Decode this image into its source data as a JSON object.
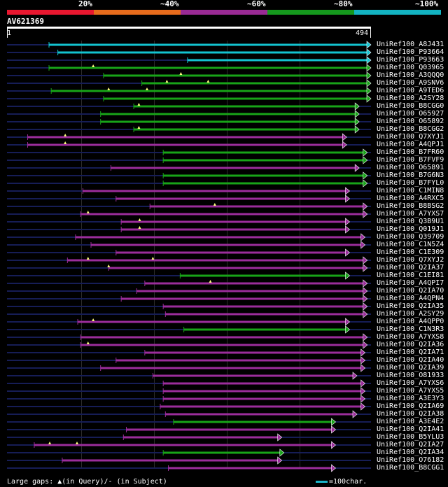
{
  "header": {
    "identity_scale": [
      {
        "label": "20%",
        "color": "#e8172f"
      },
      {
        "label": "~40%",
        "color": "#e66b1c"
      },
      {
        "label": "~60%",
        "color": "#992a94"
      },
      {
        "label": "~80%",
        "color": "#15981d"
      },
      {
        "label": "~100%",
        "color": "#13b3c2"
      }
    ],
    "query_id": "AV621369",
    "query_start": "1",
    "query_end": "494"
  },
  "colors": {
    "teal": "#13c3d0",
    "green": "#18a418",
    "purple": "#9b2d9b",
    "navy": "#161d56",
    "marker": "#ffff80"
  },
  "query_length": 494,
  "hits": [
    {
      "name": "UniRef100_A8J431",
      "color": "teal",
      "qs": 57,
      "qe": 494,
      "gaps": [],
      "markers": []
    },
    {
      "name": "UniRef100_P93664",
      "color": "teal",
      "qs": 69,
      "qe": 494,
      "gaps": [
        [
          82,
          106
        ]
      ],
      "markers": []
    },
    {
      "name": "UniRef100_P93663",
      "color": "teal",
      "qs": 245,
      "qe": 494,
      "gaps": [],
      "markers": []
    },
    {
      "name": "UniRef100_Q03965",
      "color": "green",
      "qs": 57,
      "qe": 494,
      "gaps": [],
      "markers": [
        117
      ]
    },
    {
      "name": "UniRef100_A3QQQ0",
      "color": "green",
      "qs": 131,
      "qe": 494,
      "gaps": [],
      "markers": [
        236
      ]
    },
    {
      "name": "UniRef100_A9SNV6",
      "color": "green",
      "qs": 183,
      "qe": 494,
      "gaps": [],
      "markers": [
        217,
        273
      ]
    },
    {
      "name": "UniRef100_A9TED6",
      "color": "green",
      "qs": 60,
      "qe": 494,
      "gaps": [],
      "markers": [
        138,
        190
      ]
    },
    {
      "name": "UniRef100_A2SY28",
      "color": "green",
      "qs": 131,
      "qe": 494,
      "gaps": [
        [
          160,
          180
        ],
        [
          218,
          232
        ]
      ],
      "markers": []
    },
    {
      "name": "UniRef100_B8CGG0",
      "color": "green",
      "qs": 172,
      "qe": 478,
      "gaps": [
        [
          258,
          272
        ],
        [
          362,
          376
        ]
      ],
      "markers": [
        179
      ]
    },
    {
      "name": "UniRef100_O65927",
      "color": "green",
      "qs": 127,
      "qe": 478,
      "gaps": [
        [
          240,
          254
        ]
      ],
      "markers": []
    },
    {
      "name": "UniRef100_O65892",
      "color": "green",
      "qs": 127,
      "qe": 478,
      "gaps": [
        [
          240,
          254
        ]
      ],
      "markers": []
    },
    {
      "name": "UniRef100_B8CGG2",
      "color": "green",
      "qs": 172,
      "qe": 478,
      "gaps": [
        [
          258,
          272
        ]
      ],
      "markers": [
        179
      ]
    },
    {
      "name": "UniRef100_Q7XYJ1",
      "color": "purple",
      "qs": 28,
      "qe": 461,
      "gaps": [
        [
          55,
          68
        ],
        [
          100,
          115
        ],
        [
          200,
          213
        ]
      ],
      "markers": [
        79
      ]
    },
    {
      "name": "UniRef100_A4QPJ1",
      "color": "purple",
      "qs": 28,
      "qe": 461,
      "gaps": [
        [
          55,
          68
        ],
        [
          100,
          115
        ]
      ],
      "markers": [
        79
      ]
    },
    {
      "name": "UniRef100_B7FR60",
      "color": "green",
      "qs": 212,
      "qe": 489,
      "gaps": [
        [
          272,
          286
        ]
      ],
      "markers": []
    },
    {
      "name": "UniRef100_B7FVF9",
      "color": "green",
      "qs": 212,
      "qe": 489,
      "gaps": [
        [
          272,
          286
        ]
      ],
      "markers": []
    },
    {
      "name": "UniRef100_O65891",
      "color": "purple",
      "qs": 141,
      "qe": 478,
      "gaps": [
        [
          180,
          200
        ],
        [
          300,
          320
        ]
      ],
      "markers": []
    },
    {
      "name": "UniRef100_B7G6N3",
      "color": "green",
      "qs": 212,
      "qe": 489,
      "gaps": [
        [
          272,
          286
        ]
      ],
      "markers": []
    },
    {
      "name": "UniRef100_B7FYL0",
      "color": "green",
      "qs": 212,
      "qe": 489,
      "gaps": [
        [
          272,
          286
        ]
      ],
      "markers": []
    },
    {
      "name": "UniRef100_C1MIN8",
      "color": "purple",
      "qs": 103,
      "qe": 465,
      "gaps": [
        [
          180,
          200
        ],
        [
          310,
          325
        ]
      ],
      "markers": []
    },
    {
      "name": "UniRef100_A4RXC5",
      "color": "purple",
      "qs": 148,
      "qe": 465,
      "gaps": [
        [
          220,
          240
        ]
      ],
      "markers": []
    },
    {
      "name": "UniRef100_B8BSG2",
      "color": "purple",
      "qs": 194,
      "qe": 489,
      "gaps": [],
      "markers": [
        282
      ]
    },
    {
      "name": "UniRef100_A7YXS7",
      "color": "purple",
      "qs": 100,
      "qe": 489,
      "gaps": [
        [
          125,
          145
        ],
        [
          300,
          320
        ]
      ],
      "markers": [
        110
      ]
    },
    {
      "name": "UniRef100_Q3B9U1",
      "color": "purple",
      "qs": 155,
      "qe": 465,
      "gaps": [
        [
          190,
          210
        ],
        [
          290,
          305
        ]
      ],
      "markers": [
        180
      ]
    },
    {
      "name": "UniRef100_Q019J1",
      "color": "purple",
      "qs": 155,
      "qe": 465,
      "gaps": [
        [
          190,
          210
        ],
        [
          290,
          305
        ]
      ],
      "markers": [
        180
      ]
    },
    {
      "name": "UniRef100_Q39709",
      "color": "purple",
      "qs": 93,
      "qe": 486,
      "gaps": [
        [
          100,
          125
        ],
        [
          300,
          320
        ]
      ],
      "markers": []
    },
    {
      "name": "UniRef100_C1N5Z4",
      "color": "purple",
      "qs": 114,
      "qe": 486,
      "gaps": [
        [
          200,
          220
        ]
      ],
      "markers": []
    },
    {
      "name": "UniRef100_C1E309",
      "color": "purple",
      "qs": 148,
      "qe": 465,
      "gaps": [
        [
          180,
          200
        ]
      ],
      "markers": []
    },
    {
      "name": "UniRef100_Q7XYJ2",
      "color": "purple",
      "qs": 82,
      "qe": 489,
      "gaps": [
        [
          90,
          105
        ],
        [
          260,
          275
        ]
      ],
      "markers": [
        110,
        198
      ]
    },
    {
      "name": "UniRef100_Q2IA37",
      "color": "purple",
      "qs": 138,
      "qe": 489,
      "gaps": [
        [
          160,
          180
        ],
        [
          300,
          315
        ]
      ],
      "markers": [
        138
      ]
    },
    {
      "name": "UniRef100_C1EI81",
      "color": "green",
      "qs": 235,
      "qe": 465,
      "gaps": [
        [
          300,
          315
        ]
      ],
      "markers": []
    },
    {
      "name": "UniRef100_A4QPI7",
      "color": "purple",
      "qs": 187,
      "qe": 489,
      "gaps": [
        [
          200,
          215
        ]
      ],
      "markers": [
        276
      ]
    },
    {
      "name": "UniRef100_Q2IA70",
      "color": "purple",
      "qs": 176,
      "qe": 489,
      "gaps": [
        [
          230,
          245
        ]
      ],
      "markers": []
    },
    {
      "name": "UniRef100_A4QPN4",
      "color": "purple",
      "qs": 155,
      "qe": 489,
      "gaps": [],
      "markers": []
    },
    {
      "name": "UniRef100_Q2IA35",
      "color": "purple",
      "qs": 212,
      "qe": 489,
      "gaps": [
        [
          272,
          286
        ]
      ],
      "markers": []
    },
    {
      "name": "UniRef100_A2SY29",
      "color": "purple",
      "qs": 215,
      "qe": 489,
      "gaps": [
        [
          272,
          286
        ],
        [
          340,
          355
        ]
      ],
      "markers": []
    },
    {
      "name": "UniRef100_A4QPP0",
      "color": "purple",
      "qs": 96,
      "qe": 465,
      "gaps": [],
      "markers": [
        117
      ]
    },
    {
      "name": "UniRef100_C1N3R3",
      "color": "green",
      "qs": 240,
      "qe": 465,
      "gaps": [],
      "markers": []
    },
    {
      "name": "UniRef100_A7YXS8",
      "color": "purple",
      "qs": 100,
      "qe": 489,
      "gaps": [
        [
          160,
          180
        ],
        [
          300,
          320
        ]
      ],
      "markers": []
    },
    {
      "name": "UniRef100_Q2IA36",
      "color": "purple",
      "qs": 100,
      "qe": 489,
      "gaps": [
        [
          160,
          180
        ],
        [
          300,
          320
        ]
      ],
      "markers": [
        110
      ]
    },
    {
      "name": "UniRef100_Q2IA71",
      "color": "purple",
      "qs": 187,
      "qe": 486,
      "gaps": [
        [
          230,
          245
        ]
      ],
      "markers": []
    },
    {
      "name": "UniRef100_Q2IA40",
      "color": "purple",
      "qs": 148,
      "qe": 486,
      "gaps": [
        [
          160,
          180
        ],
        [
          300,
          320
        ]
      ],
      "markers": []
    },
    {
      "name": "UniRef100_Q2IA39",
      "color": "purple",
      "qs": 127,
      "qe": 486,
      "gaps": [
        [
          200,
          215
        ]
      ],
      "markers": []
    },
    {
      "name": "UniRef100_O81933",
      "color": "purple",
      "qs": 198,
      "qe": 475,
      "gaps": [
        [
          260,
          275
        ]
      ],
      "markers": []
    },
    {
      "name": "UniRef100_A7YXS6",
      "color": "purple",
      "qs": 212,
      "qe": 486,
      "gaps": [
        [
          272,
          286
        ]
      ],
      "markers": []
    },
    {
      "name": "UniRef100_A7YXS5",
      "color": "purple",
      "qs": 212,
      "qe": 486,
      "gaps": [
        [
          272,
          286
        ]
      ],
      "markers": []
    },
    {
      "name": "UniRef100_A3E3Y3",
      "color": "purple",
      "qs": 212,
      "qe": 486,
      "gaps": [
        [
          272,
          286
        ]
      ],
      "markers": []
    },
    {
      "name": "UniRef100_Q2IA69",
      "color": "purple",
      "qs": 208,
      "qe": 486,
      "gaps": [
        [
          272,
          286
        ]
      ],
      "markers": []
    },
    {
      "name": "UniRef100_Q2IA38",
      "color": "purple",
      "qs": 215,
      "qe": 475,
      "gaps": [
        [
          272,
          286
        ]
      ],
      "markers": []
    },
    {
      "name": "UniRef100_A3E4E2",
      "color": "green",
      "qs": 226,
      "qe": 446,
      "gaps": [
        [
          300,
          315
        ]
      ],
      "markers": []
    },
    {
      "name": "UniRef100_Q2IA41",
      "color": "purple",
      "qs": 162,
      "qe": 446,
      "gaps": [
        [
          230,
          245
        ]
      ],
      "markers": []
    },
    {
      "name": "UniRef100_B5YLU3",
      "color": "purple",
      "qs": 158,
      "qe": 373,
      "gaps": [
        [
          250,
          265
        ]
      ],
      "markers": []
    },
    {
      "name": "UniRef100_Q2IA27",
      "color": "purple",
      "qs": 37,
      "qe": 446,
      "gaps": [],
      "markers": [
        58,
        95
      ]
    },
    {
      "name": "UniRef100_Q2IA34",
      "color": "green",
      "qs": 212,
      "qe": 376,
      "gaps": [],
      "markers": []
    },
    {
      "name": "UniRef100_O76182",
      "color": "purple",
      "qs": 75,
      "qe": 373,
      "gaps": [],
      "markers": []
    },
    {
      "name": "UniRef100_B8CGG1",
      "color": "purple",
      "qs": 219,
      "qe": 446,
      "gaps": [],
      "markers": []
    }
  ],
  "footer": {
    "legend": "Large gaps: ▲(in Query)/- (in Subject)",
    "scale": "=100char."
  }
}
